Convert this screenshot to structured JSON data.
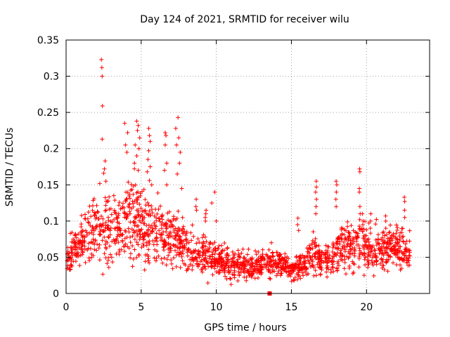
{
  "chart_data": {
    "type": "scatter",
    "title": "Day 124 of 2021, SRMTID for receiver wilu",
    "xlabel": "GPS time / hours",
    "ylabel": "SRMTID / TECUs",
    "xlim": [
      0,
      24.2
    ],
    "ylim": [
      0,
      0.35
    ],
    "xticks": [
      0,
      5,
      10,
      15,
      20
    ],
    "xtick_labels": [
      "0",
      "5",
      "10",
      "15",
      "20"
    ],
    "yticks": [
      0,
      0.05,
      0.1,
      0.15,
      0.2,
      0.25,
      0.3,
      0.35
    ],
    "ytick_labels": [
      "0",
      "0.05",
      "0.1",
      "0.15",
      "0.2",
      "0.25",
      "0.3",
      "0.35"
    ],
    "grid": true,
    "marker": "plus",
    "color": "#ff0000",
    "envelope_hours": [
      0,
      0.5,
      1,
      1.5,
      2,
      2.5,
      3,
      3.5,
      4,
      4.5,
      5,
      5.5,
      6,
      6.5,
      7,
      7.5,
      8,
      8.5,
      9,
      9.5,
      10,
      10.5,
      11,
      11.5,
      12,
      12.5,
      13,
      13.5,
      14,
      14.5,
      15,
      15.5,
      16,
      16.5,
      17,
      17.5,
      18,
      18.5,
      19,
      19.5,
      20,
      20.5,
      21,
      21.5,
      22,
      22.5,
      23
    ],
    "envelope_mean": [
      0.045,
      0.06,
      0.07,
      0.08,
      0.085,
      0.09,
      0.09,
      0.095,
      0.1,
      0.1,
      0.095,
      0.09,
      0.085,
      0.08,
      0.075,
      0.07,
      0.065,
      0.06,
      0.055,
      0.05,
      0.048,
      0.045,
      0.04,
      0.038,
      0.038,
      0.037,
      0.04,
      0.042,
      0.045,
      0.04,
      0.035,
      0.035,
      0.045,
      0.06,
      0.05,
      0.045,
      0.06,
      0.07,
      0.06,
      0.07,
      0.065,
      0.06,
      0.06,
      0.065,
      0.06,
      0.065,
      0.05
    ],
    "envelope_spread": [
      0.02,
      0.025,
      0.03,
      0.035,
      0.04,
      0.045,
      0.045,
      0.045,
      0.05,
      0.05,
      0.045,
      0.04,
      0.035,
      0.035,
      0.035,
      0.03,
      0.03,
      0.025,
      0.025,
      0.02,
      0.02,
      0.02,
      0.018,
      0.016,
      0.016,
      0.015,
      0.016,
      0.018,
      0.018,
      0.018,
      0.016,
      0.016,
      0.02,
      0.03,
      0.025,
      0.02,
      0.028,
      0.03,
      0.028,
      0.03,
      0.028,
      0.026,
      0.025,
      0.026,
      0.025,
      0.026,
      0.022
    ],
    "points": [
      [
        2.35,
        0.323
      ],
      [
        2.38,
        0.312
      ],
      [
        2.4,
        0.3
      ],
      [
        2.42,
        0.259
      ],
      [
        2.4,
        0.213
      ],
      [
        2.6,
        0.183
      ],
      [
        2.55,
        0.172
      ],
      [
        2.5,
        0.166
      ],
      [
        2.65,
        0.155
      ],
      [
        3.9,
        0.235
      ],
      [
        4.1,
        0.222
      ],
      [
        3.95,
        0.205
      ],
      [
        4.05,
        0.195
      ],
      [
        4.7,
        0.238
      ],
      [
        4.8,
        0.232
      ],
      [
        4.75,
        0.225
      ],
      [
        4.9,
        0.215
      ],
      [
        4.6,
        0.205
      ],
      [
        4.85,
        0.2
      ],
      [
        4.7,
        0.19
      ],
      [
        4.55,
        0.18
      ],
      [
        4.8,
        0.17
      ],
      [
        5.5,
        0.228
      ],
      [
        5.55,
        0.218
      ],
      [
        5.6,
        0.21
      ],
      [
        5.5,
        0.197
      ],
      [
        5.45,
        0.185
      ],
      [
        5.6,
        0.175
      ],
      [
        5.4,
        0.168
      ],
      [
        5.55,
        0.156
      ],
      [
        5.7,
        0.15
      ],
      [
        6.6,
        0.222
      ],
      [
        6.65,
        0.218
      ],
      [
        6.6,
        0.205
      ],
      [
        6.7,
        0.18
      ],
      [
        6.55,
        0.17
      ],
      [
        6.7,
        0.15
      ],
      [
        7.45,
        0.243
      ],
      [
        7.3,
        0.228
      ],
      [
        7.5,
        0.215
      ],
      [
        7.35,
        0.205
      ],
      [
        7.6,
        0.195
      ],
      [
        7.55,
        0.18
      ],
      [
        7.4,
        0.165
      ],
      [
        7.7,
        0.145
      ],
      [
        9.9,
        0.14
      ],
      [
        9.7,
        0.125
      ],
      [
        9.3,
        0.11
      ],
      [
        10.0,
        0.1
      ],
      [
        13.55,
        0.0
      ]
    ],
    "extra_peaks": [
      {
        "x": 16.65,
        "values": [
          0.155,
          0.147,
          0.14,
          0.13,
          0.12,
          0.11
        ]
      },
      {
        "x": 18.0,
        "values": [
          0.155,
          0.15,
          0.14,
          0.13,
          0.12
        ]
      },
      {
        "x": 19.55,
        "values": [
          0.172,
          0.168,
          0.145,
          0.14,
          0.12,
          0.11
        ]
      },
      {
        "x": 19.75,
        "values": [
          0.1,
          0.11,
          0.095
        ]
      },
      {
        "x": 22.55,
        "values": [
          0.133,
          0.127,
          0.115,
          0.105
        ]
      },
      {
        "x": 15.45,
        "values": [
          0.104,
          0.095,
          0.087
        ]
      },
      {
        "x": 20.25,
        "values": [
          0.11,
          0.1,
          0.09
        ]
      },
      {
        "x": 21.3,
        "values": [
          0.107,
          0.1,
          0.09
        ]
      },
      {
        "x": 8.65,
        "values": [
          0.13,
          0.12,
          0.115
        ]
      },
      {
        "x": 9.3,
        "values": [
          0.115,
          0.105,
          0.1
        ]
      }
    ],
    "point_count": 1800
  }
}
